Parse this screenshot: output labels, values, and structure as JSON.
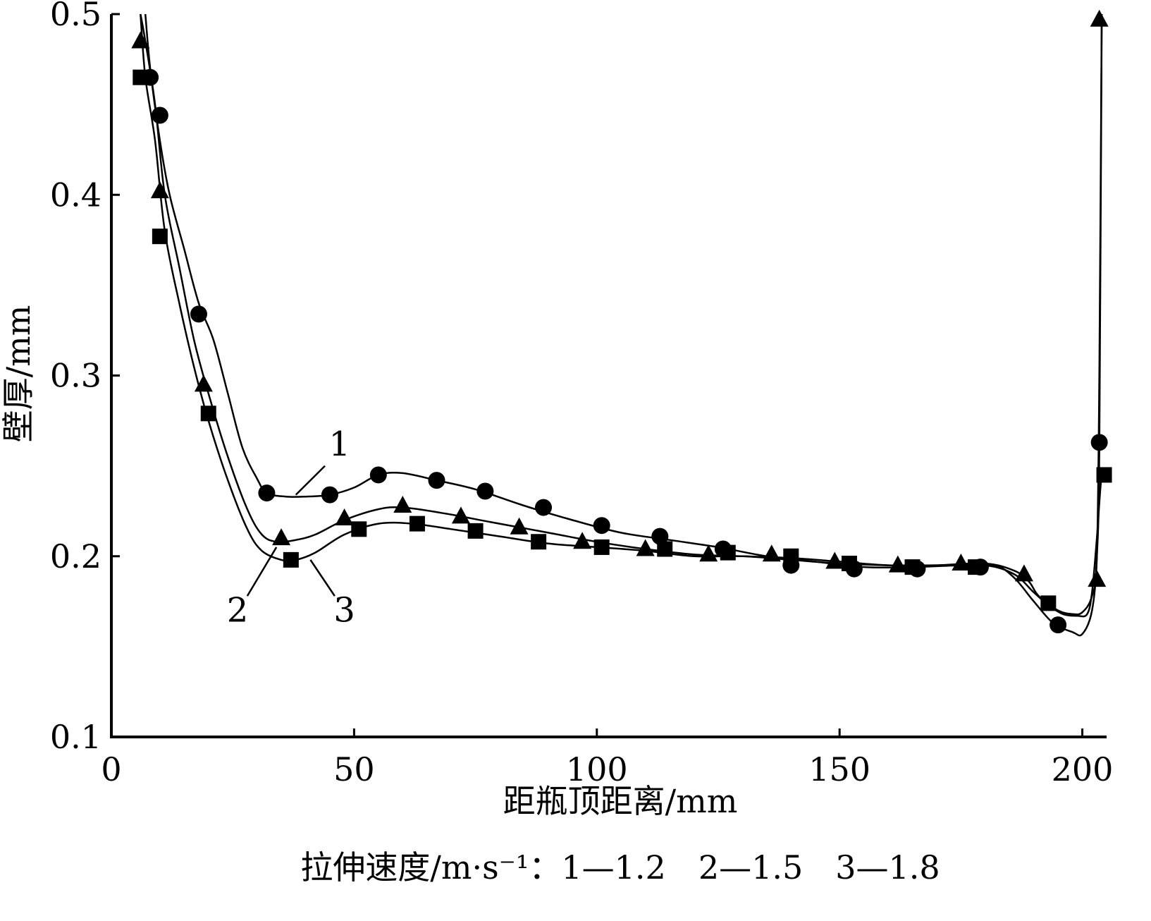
{
  "chart_data": {
    "type": "line",
    "xlabel": "距瓶顶距离/mm",
    "ylabel": "壁厚/mm",
    "xlim": [
      0,
      205
    ],
    "ylim": [
      0.1,
      0.5
    ],
    "x_ticks": [
      0,
      50,
      100,
      150,
      200
    ],
    "x_tick_labels": [
      "0",
      "50",
      "100",
      "150",
      "200"
    ],
    "y_ticks": [
      0.1,
      0.2,
      0.3,
      0.4,
      0.5
    ],
    "y_tick_labels": [
      "0.1",
      "0.2",
      "0.3",
      "0.4",
      "0.5"
    ],
    "grid": false,
    "note": "拉伸速度/m·s⁻¹：1—1.2　2—1.5　3—1.8",
    "series": [
      {
        "name": "1",
        "marker": "circle",
        "curve": [
          [
            7,
            0.5
          ],
          [
            8,
            0.47
          ],
          [
            10,
            0.43
          ],
          [
            12,
            0.4
          ],
          [
            15,
            0.37
          ],
          [
            18,
            0.34
          ],
          [
            21,
            0.32
          ],
          [
            24,
            0.29
          ],
          [
            27,
            0.26
          ],
          [
            30,
            0.243
          ],
          [
            32,
            0.235
          ],
          [
            36,
            0.233
          ],
          [
            40,
            0.233
          ],
          [
            45,
            0.234
          ],
          [
            50,
            0.238
          ],
          [
            55,
            0.245
          ],
          [
            60,
            0.246
          ],
          [
            67,
            0.242
          ],
          [
            75,
            0.237
          ],
          [
            85,
            0.228
          ],
          [
            95,
            0.22
          ],
          [
            105,
            0.213
          ],
          [
            115,
            0.209
          ],
          [
            125,
            0.205
          ],
          [
            135,
            0.2
          ],
          [
            145,
            0.197
          ],
          [
            155,
            0.194
          ],
          [
            165,
            0.194
          ],
          [
            175,
            0.195
          ],
          [
            182,
            0.195
          ],
          [
            186,
            0.188
          ],
          [
            190,
            0.175
          ],
          [
            194,
            0.163
          ],
          [
            198,
            0.158
          ],
          [
            200,
            0.157
          ],
          [
            202,
            0.17
          ],
          [
            203,
            0.2
          ],
          [
            203.5,
            0.26
          ],
          [
            204,
            0.5
          ]
        ],
        "points": [
          [
            8,
            0.465
          ],
          [
            10,
            0.444
          ],
          [
            18,
            0.334
          ],
          [
            32,
            0.235
          ],
          [
            45,
            0.234
          ],
          [
            55,
            0.245
          ],
          [
            67,
            0.242
          ],
          [
            77,
            0.236
          ],
          [
            89,
            0.227
          ],
          [
            101,
            0.217
          ],
          [
            113,
            0.211
          ],
          [
            126,
            0.204
          ],
          [
            140,
            0.195
          ],
          [
            153,
            0.193
          ],
          [
            166,
            0.193
          ],
          [
            179,
            0.194
          ],
          [
            195,
            0.162
          ],
          [
            203.5,
            0.263
          ]
        ]
      },
      {
        "name": "2",
        "marker": "triangle",
        "curve": [
          [
            6,
            0.5
          ],
          [
            7,
            0.485
          ],
          [
            9,
            0.45
          ],
          [
            11,
            0.4
          ],
          [
            14,
            0.36
          ],
          [
            17,
            0.32
          ],
          [
            20,
            0.29
          ],
          [
            24,
            0.255
          ],
          [
            28,
            0.226
          ],
          [
            31,
            0.212
          ],
          [
            34,
            0.208
          ],
          [
            38,
            0.209
          ],
          [
            42,
            0.212
          ],
          [
            48,
            0.22
          ],
          [
            55,
            0.226
          ],
          [
            60,
            0.227
          ],
          [
            68,
            0.224
          ],
          [
            78,
            0.219
          ],
          [
            90,
            0.213
          ],
          [
            100,
            0.208
          ],
          [
            110,
            0.204
          ],
          [
            120,
            0.201
          ],
          [
            130,
            0.2
          ],
          [
            140,
            0.199
          ],
          [
            150,
            0.197
          ],
          [
            160,
            0.195
          ],
          [
            170,
            0.195
          ],
          [
            180,
            0.196
          ],
          [
            186,
            0.192
          ],
          [
            189,
            0.186
          ],
          [
            191,
            0.178
          ],
          [
            195,
            0.17
          ],
          [
            198,
            0.168
          ],
          [
            200,
            0.169
          ],
          [
            202,
            0.178
          ],
          [
            203,
            0.2
          ],
          [
            203.5,
            0.3
          ],
          [
            204,
            0.5
          ]
        ],
        "points": [
          [
            6,
            0.485
          ],
          [
            10,
            0.402
          ],
          [
            19,
            0.295
          ],
          [
            35,
            0.21
          ],
          [
            48,
            0.221
          ],
          [
            60,
            0.228
          ],
          [
            72,
            0.222
          ],
          [
            84,
            0.216
          ],
          [
            97,
            0.208
          ],
          [
            110,
            0.204
          ],
          [
            123,
            0.201
          ],
          [
            136,
            0.201
          ],
          [
            149,
            0.197
          ],
          [
            162,
            0.195
          ],
          [
            175,
            0.196
          ],
          [
            188,
            0.19
          ],
          [
            203,
            0.187
          ],
          [
            203.5,
            0.497
          ]
        ]
      },
      {
        "name": "3",
        "marker": "square",
        "curve": [
          [
            6,
            0.5
          ],
          [
            7,
            0.465
          ],
          [
            9,
            0.43
          ],
          [
            11,
            0.38
          ],
          [
            14,
            0.34
          ],
          [
            17,
            0.305
          ],
          [
            20,
            0.275
          ],
          [
            24,
            0.242
          ],
          [
            28,
            0.215
          ],
          [
            31,
            0.203
          ],
          [
            35,
            0.198
          ],
          [
            38,
            0.198
          ],
          [
            42,
            0.202
          ],
          [
            48,
            0.212
          ],
          [
            55,
            0.218
          ],
          [
            62,
            0.218
          ],
          [
            70,
            0.215
          ],
          [
            80,
            0.211
          ],
          [
            90,
            0.207
          ],
          [
            100,
            0.205
          ],
          [
            110,
            0.203
          ],
          [
            120,
            0.2
          ],
          [
            130,
            0.2
          ],
          [
            140,
            0.198
          ],
          [
            150,
            0.196
          ],
          [
            160,
            0.195
          ],
          [
            170,
            0.195
          ],
          [
            180,
            0.195
          ],
          [
            186,
            0.19
          ],
          [
            190,
            0.18
          ],
          [
            193,
            0.173
          ],
          [
            196,
            0.168
          ],
          [
            199,
            0.167
          ],
          [
            201,
            0.168
          ],
          [
            202,
            0.18
          ],
          [
            203,
            0.21
          ],
          [
            204,
            0.245
          ],
          [
            205,
            0.245
          ]
        ],
        "points": [
          [
            6,
            0.465
          ],
          [
            10,
            0.377
          ],
          [
            20,
            0.279
          ],
          [
            37,
            0.198
          ],
          [
            51,
            0.215
          ],
          [
            63,
            0.218
          ],
          [
            75,
            0.214
          ],
          [
            88,
            0.208
          ],
          [
            101,
            0.205
          ],
          [
            114,
            0.204
          ],
          [
            127,
            0.202
          ],
          [
            140,
            0.2
          ],
          [
            152,
            0.196
          ],
          [
            165,
            0.194
          ],
          [
            178,
            0.194
          ],
          [
            193,
            0.174
          ],
          [
            204.5,
            0.245
          ]
        ]
      }
    ],
    "series_label_positions": [
      {
        "text": "1",
        "at": [
          47,
          0.262
        ],
        "leader_from": [
          44,
          0.25
        ],
        "leader_to": [
          38,
          0.234
        ]
      },
      {
        "text": "2",
        "at": [
          26,
          0.17
        ],
        "leader_from": [
          28,
          0.178
        ],
        "leader_to": [
          34,
          0.205
        ]
      },
      {
        "text": "3",
        "at": [
          48,
          0.17
        ],
        "leader_from": [
          46,
          0.178
        ],
        "leader_to": [
          41,
          0.198
        ]
      }
    ]
  }
}
